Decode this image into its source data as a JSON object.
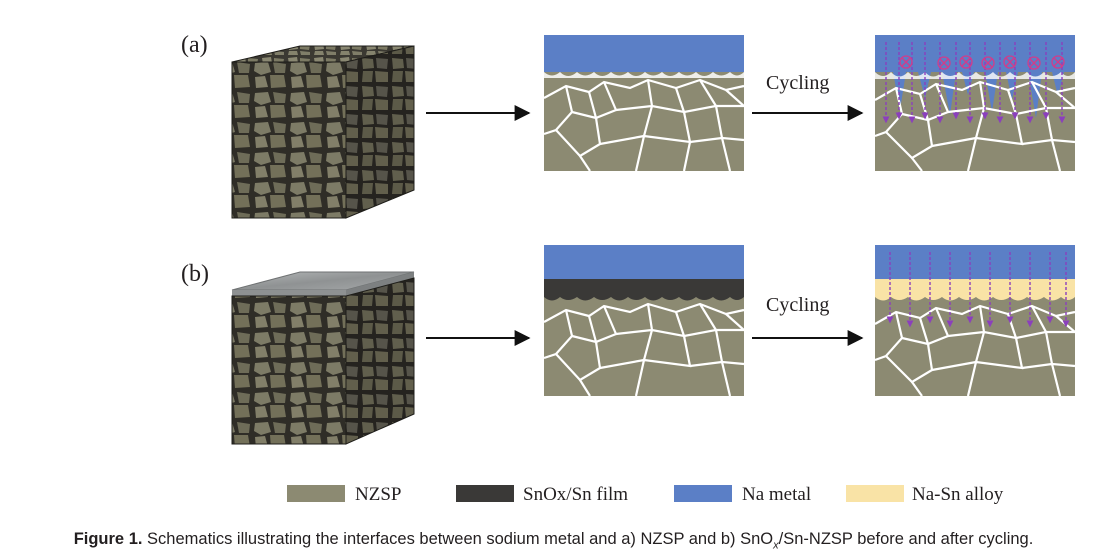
{
  "panels": [
    {
      "label": "(a)",
      "step_label": "Cycling"
    },
    {
      "label": "(b)",
      "step_label": "Cycling"
    }
  ],
  "legend": [
    {
      "label": "NZSP",
      "color": "#8c8a72"
    },
    {
      "label": "SnOx/Sn film",
      "color": "#3a3937"
    },
    {
      "label": "Na metal",
      "color": "#5b7fc6"
    },
    {
      "label": "Na-Sn alloy",
      "color": "#f9e3a6"
    }
  ],
  "colors": {
    "grain_line": "#ffffff",
    "arrow": "#111111",
    "na_flux": "#8b3fbd",
    "void_marker": "#d23c8a",
    "stone_dark": "#2f2d27",
    "stone_light": "#7d7b66",
    "film_top": "#9ea1a2"
  },
  "caption": {
    "lead": "Figure 1.",
    "text_before_sub": "Schematics illustrating the interfaces between sodium metal and a) NZSP and b) SnO",
    "subscript": "x",
    "text_after_sub": "/Sn-NZSP before and after cycling."
  }
}
